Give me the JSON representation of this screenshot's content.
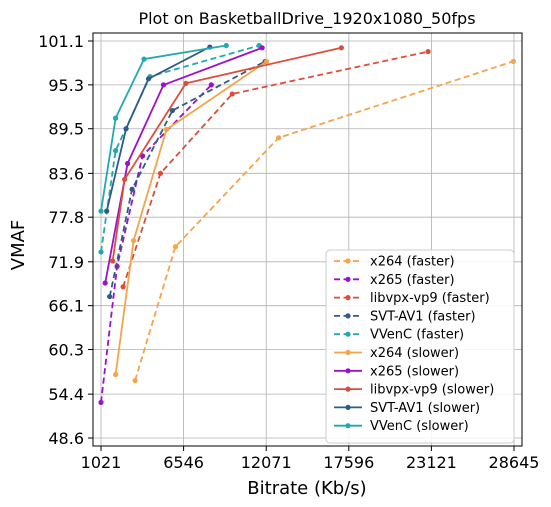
{
  "chart_data": {
    "type": "line",
    "title": "Plot on BasketballDrive_1920x1080_50fps",
    "xlabel": "Bitrate (Kb/s)",
    "ylabel": "VMAF",
    "xlim": [
      1021,
      28645
    ],
    "ylim": [
      48.6,
      101.1
    ],
    "xticks": [
      1021,
      6546,
      12071,
      17596,
      23121,
      28645
    ],
    "yticks": [
      48.6,
      54.4,
      60.3,
      66.1,
      71.9,
      77.8,
      83.6,
      89.5,
      95.3,
      101.1
    ],
    "grid": true,
    "legend_position": "lower-right",
    "series": [
      {
        "name": "x264 (faster)",
        "color": "#F4A44A",
        "dash": "dashed",
        "x": [
          3300,
          6000,
          12900,
          28600
        ],
        "y": [
          56.2,
          73.9,
          88.3,
          98.4
        ]
      },
      {
        "name": "x265 (faster)",
        "color": "#9B11CC",
        "dash": "dashed",
        "x": [
          1021,
          2100,
          3800,
          8400
        ],
        "y": [
          53.3,
          71.3,
          85.9,
          95.3
        ]
      },
      {
        "name": "libvpx-vp9 (faster)",
        "color": "#DB4E3C",
        "dash": "dashed",
        "x": [
          2500,
          5000,
          9800,
          22900
        ],
        "y": [
          68.6,
          83.6,
          94.1,
          99.7
        ]
      },
      {
        "name": "SVT-AV1 (faster)",
        "color": "#2E5C84",
        "dash": "dashed",
        "x": [
          1600,
          3100,
          5800,
          12000
        ],
        "y": [
          67.3,
          81.5,
          91.9,
          98.4
        ]
      },
      {
        "name": "VVenC (faster)",
        "color": "#22A9AD",
        "dash": "dashed",
        "x": [
          1021,
          2000,
          4300,
          11600
        ],
        "y": [
          73.2,
          86.6,
          96.4,
          100.5
        ]
      },
      {
        "name": "x264 (slower)",
        "color": "#F4A44A",
        "dash": "solid",
        "x": [
          2000,
          3200,
          5400,
          12100
        ],
        "y": [
          57.0,
          74.7,
          89.4,
          98.4
        ]
      },
      {
        "name": "x265 (slower)",
        "color": "#9B11CC",
        "dash": "solid",
        "x": [
          1300,
          2800,
          5200,
          11800
        ],
        "y": [
          69.1,
          84.9,
          95.3,
          100.2
        ]
      },
      {
        "name": "libvpx-vp9 (slower)",
        "color": "#DB4E3C",
        "dash": "solid",
        "x": [
          1800,
          2600,
          6700,
          17100
        ],
        "y": [
          72.0,
          82.8,
          95.5,
          100.2
        ]
      },
      {
        "name": "SVT-AV1 (slower)",
        "color": "#2E5C84",
        "dash": "solid",
        "x": [
          1400,
          2700,
          4200,
          8300
        ],
        "y": [
          78.6,
          89.5,
          96.1,
          100.3
        ]
      },
      {
        "name": "VVenC (slower)",
        "color": "#22A9AD",
        "dash": "solid",
        "x": [
          1021,
          2000,
          3900,
          9400
        ],
        "y": [
          78.6,
          90.9,
          98.7,
          100.5
        ]
      }
    ]
  }
}
